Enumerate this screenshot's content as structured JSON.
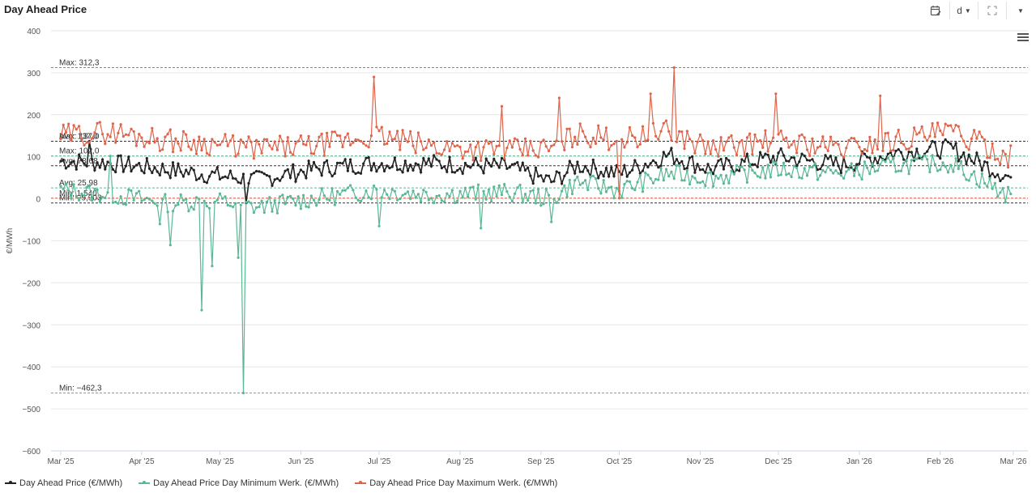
{
  "header": {
    "title": "Day Ahead Price",
    "toolbar": {
      "calendar_icon": "calendar-edit-icon",
      "interval_label": "d",
      "expand_icon": "expand-icon",
      "more_icon": "caret-down-icon"
    }
  },
  "menu_icon": "hamburger-menu-icon",
  "colors": {
    "price": "#222222",
    "min": "#5ab894",
    "max": "#e0644a",
    "grid": "#e6e6e6"
  },
  "chart_data": {
    "type": "line",
    "ylabel": "€/MWh",
    "ylim": [
      -600,
      400
    ],
    "yticks": [
      "400",
      "300",
      "200",
      "100",
      "0",
      "−100",
      "−200",
      "−300",
      "−400",
      "−500",
      "−600"
    ],
    "xticks": [
      "Mar '25",
      "Apr '25",
      "May '25",
      "Jun '25",
      "Jul '25",
      "Aug '25",
      "Sep '25",
      "Oct '25",
      "Nov '25",
      "Dec '25",
      "Jan '26",
      "Feb '26",
      "Mar '26"
    ],
    "x_range": [
      "2025-03-01",
      "2026-03-01"
    ],
    "series": [
      {
        "name": "Day Ahead Price (€/MWh)",
        "key": "price",
        "keypoints": [
          [
            "2025-03-01",
            90
          ],
          [
            "2025-03-20",
            85
          ],
          [
            "2025-04-10",
            70
          ],
          [
            "2025-04-30",
            55
          ],
          [
            "2025-05-15",
            45
          ],
          [
            "2025-06-05",
            70
          ],
          [
            "2025-06-30",
            85
          ],
          [
            "2025-07-20",
            85
          ],
          [
            "2025-08-20",
            75
          ],
          [
            "2025-09-05",
            40
          ],
          [
            "2025-09-15",
            80
          ],
          [
            "2025-10-01",
            60
          ],
          [
            "2025-10-20",
            105
          ],
          [
            "2025-11-05",
            70
          ],
          [
            "2025-12-01",
            100
          ],
          [
            "2025-12-25",
            80
          ],
          [
            "2026-01-15",
            110
          ],
          [
            "2026-02-05",
            120
          ],
          [
            "2026-02-28",
            50
          ]
        ],
        "extremes": [
          [
            "2025-05-11",
            -9.9
          ],
          [
            "2025-03-12",
            137.0
          ]
        ]
      },
      {
        "name": "Day Ahead Price Day Minimum Werk. (€/MWh)",
        "key": "min",
        "keypoints": [
          [
            "2025-03-01",
            20
          ],
          [
            "2025-03-20",
            10
          ],
          [
            "2025-04-10",
            -10
          ],
          [
            "2025-04-30",
            -5
          ],
          [
            "2025-05-15",
            -20
          ],
          [
            "2025-06-05",
            0
          ],
          [
            "2025-06-30",
            20
          ],
          [
            "2025-07-20",
            10
          ],
          [
            "2025-08-20",
            15
          ],
          [
            "2025-09-05",
            0
          ],
          [
            "2025-09-15",
            40
          ],
          [
            "2025-10-01",
            20
          ],
          [
            "2025-10-20",
            60
          ],
          [
            "2025-11-05",
            50
          ],
          [
            "2025-12-01",
            70
          ],
          [
            "2025-12-25",
            60
          ],
          [
            "2026-01-15",
            80
          ],
          [
            "2026-02-05",
            85
          ],
          [
            "2026-02-28",
            5
          ]
        ],
        "extremes": [
          [
            "2025-04-08",
            -60
          ],
          [
            "2025-04-12",
            -110
          ],
          [
            "2025-04-24",
            -265
          ],
          [
            "2025-04-28",
            -160
          ],
          [
            "2025-05-08",
            -140
          ],
          [
            "2025-05-10",
            -462.3
          ],
          [
            "2025-08-09",
            -70
          ],
          [
            "2025-07-01",
            -65
          ],
          [
            "2025-09-05",
            -55
          ],
          [
            "2025-03-20",
            102.0
          ]
        ]
      },
      {
        "name": "Day Ahead Price Day Maximum Werk. (€/MWh)",
        "key": "max",
        "keypoints": [
          [
            "2025-03-01",
            150
          ],
          [
            "2025-03-20",
            160
          ],
          [
            "2025-04-10",
            140
          ],
          [
            "2025-04-30",
            130
          ],
          [
            "2025-05-15",
            120
          ],
          [
            "2025-06-05",
            125
          ],
          [
            "2025-06-30",
            150
          ],
          [
            "2025-07-20",
            125
          ],
          [
            "2025-08-20",
            115
          ],
          [
            "2025-09-05",
            120
          ],
          [
            "2025-09-15",
            155
          ],
          [
            "2025-10-01",
            140
          ],
          [
            "2025-10-20",
            160
          ],
          [
            "2025-11-05",
            120
          ],
          [
            "2025-12-01",
            140
          ],
          [
            "2025-12-25",
            120
          ],
          [
            "2026-01-15",
            140
          ],
          [
            "2026-02-05",
            160
          ],
          [
            "2026-02-28",
            100
          ]
        ],
        "extremes": [
          [
            "2025-06-29",
            290
          ],
          [
            "2025-10-22",
            312.3
          ],
          [
            "2025-10-01",
            1.54
          ],
          [
            "2025-09-08",
            240
          ],
          [
            "2025-08-17",
            220
          ],
          [
            "2026-01-09",
            245
          ],
          [
            "2025-11-30",
            250
          ],
          [
            "2025-10-13",
            250
          ]
        ]
      }
    ],
    "plot_lines": [
      {
        "label": "Max: 312,3",
        "value": 312.3,
        "series": "max"
      },
      {
        "label": "Avg: 137,0",
        "value": 137.0,
        "series": "max"
      },
      {
        "label": "Min: 1,540",
        "value": 1.54,
        "series": "max"
      },
      {
        "label": "Max: 137,0",
        "value": 137.0,
        "series": "price"
      },
      {
        "label": "Avg: 78,68",
        "value": 78.68,
        "series": "price"
      },
      {
        "label": "Min: −9,903",
        "value": -9.903,
        "series": "price"
      },
      {
        "label": "Max: 102,0",
        "value": 102.0,
        "series": "min"
      },
      {
        "label": "Avg: 25,98",
        "value": 25.98,
        "series": "min"
      },
      {
        "label": "Min: −462,3",
        "value": -462.3,
        "series": "min"
      }
    ]
  },
  "legend": [
    {
      "label": "Day Ahead Price (€/MWh)",
      "key": "price"
    },
    {
      "label": "Day Ahead Price Day Minimum Werk. (€/MWh)",
      "key": "min"
    },
    {
      "label": "Day Ahead Price Day Maximum Werk. (€/MWh)",
      "key": "max"
    }
  ]
}
